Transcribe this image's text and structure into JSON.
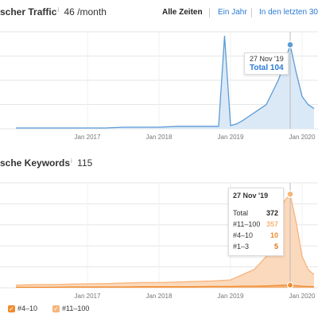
{
  "header1": {
    "title": "scher Traffic",
    "value": "46 /month"
  },
  "ranges": {
    "all": "Alle Zeiten",
    "one_year": "Ein Jahr",
    "last30": "In den letzten 30"
  },
  "header2": {
    "title": "sche Keywords",
    "value": "115"
  },
  "colors": {
    "traffic": "#5b9bd5",
    "traffic_fill": "#dbe9f7",
    "kw_light": "#f7b57a",
    "kw_mid": "#f08c2e",
    "kw_dark": "#d9700f"
  },
  "tooltip1": {
    "date": "27 Nov '19",
    "text": "Total 104"
  },
  "tooltip2": {
    "date": "27 Nov '19",
    "rows": [
      {
        "label": "Total",
        "value": "372"
      },
      {
        "label": "#11–100",
        "value": "357"
      },
      {
        "label": "#4–10",
        "value": "10"
      },
      {
        "label": "#1–3",
        "value": "5"
      }
    ]
  },
  "legend": [
    {
      "label": "#4–10"
    },
    {
      "label": "#11–100"
    }
  ],
  "chart_data": [
    {
      "type": "area",
      "x": [
        "2016-01",
        "2016-04",
        "2016-07",
        "2016-10",
        "2017-01",
        "2017-04",
        "2017-07",
        "2017-10",
        "2018-01",
        "2018-04",
        "2018-07",
        "2018-10",
        "2018-11",
        "2018-12",
        "2019-01",
        "2019-02",
        "2019-03",
        "2019-04",
        "2019-05",
        "2019-06",
        "2019-07",
        "2019-08",
        "2019-09",
        "2019-10",
        "2019-11",
        "2019-12",
        "2020-01",
        "2020-02",
        "2020-03"
      ],
      "series": [
        {
          "values": [
            1,
            1,
            1,
            1,
            1,
            1,
            2,
            2,
            2,
            3,
            3,
            3,
            3,
            115,
            4,
            6,
            10,
            15,
            20,
            25,
            30,
            45,
            60,
            80,
            104,
            70,
            40,
            30,
            25
          ]
        }
      ],
      "x_tick_labels": [
        "Jan 2017",
        "Jan 2018",
        "Jan 2019",
        "Jan 2020"
      ],
      "ylim": [
        0,
        120
      ],
      "grid": true
    },
    {
      "type": "area",
      "x": [
        "2016-01",
        "2016-04",
        "2016-07",
        "2016-10",
        "2017-01",
        "2017-04",
        "2017-07",
        "2017-10",
        "2018-01",
        "2018-04",
        "2018-07",
        "2018-10",
        "2019-01",
        "2019-03",
        "2019-05",
        "2019-07",
        "2019-08",
        "2019-09",
        "2019-10",
        "2019-11",
        "2019-12",
        "2020-01",
        "2020-02",
        "2020-03"
      ],
      "series": [
        {
          "name": "#11–100",
          "values": [
            10,
            12,
            12,
            14,
            15,
            16,
            18,
            20,
            20,
            22,
            24,
            26,
            30,
            50,
            70,
            120,
            180,
            260,
            330,
            357,
            250,
            120,
            70,
            50
          ]
        },
        {
          "name": "#4–10",
          "values": [
            2,
            2,
            2,
            3,
            3,
            3,
            3,
            4,
            4,
            4,
            4,
            5,
            5,
            6,
            6,
            7,
            8,
            9,
            10,
            10,
            8,
            6,
            5,
            4
          ]
        }
      ],
      "x_tick_labels": [
        "Jan 2017",
        "Jan 2018",
        "Jan 2019",
        "Jan 2020"
      ],
      "ylim": [
        0,
        400
      ],
      "grid": true
    }
  ]
}
